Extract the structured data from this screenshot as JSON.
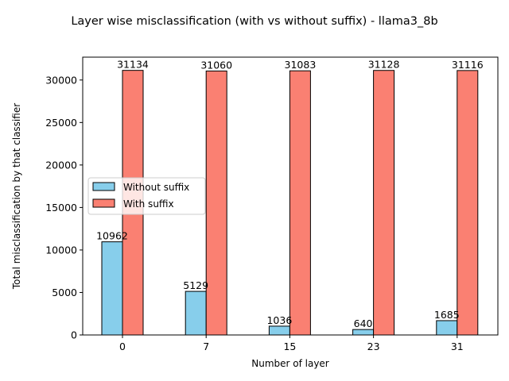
{
  "chart_data": {
    "type": "bar",
    "title": "Layer wise misclassification (with vs without suffix) - llama3_8b",
    "xlabel": "Number of layer",
    "ylabel": "Total misclassification by that classifier",
    "categories": [
      "0",
      "7",
      "15",
      "23",
      "31"
    ],
    "series": [
      {
        "name": "Without suffix",
        "color": "#87CEEB",
        "values": [
          10962,
          5129,
          1036,
          640,
          1685
        ]
      },
      {
        "name": "With suffix",
        "color": "#FA8072",
        "values": [
          31134,
          31060,
          31083,
          31128,
          31116
        ]
      }
    ],
    "ylim": [
      0,
      32690
    ],
    "yticks": [
      0,
      5000,
      10000,
      15000,
      20000,
      25000,
      30000
    ],
    "legend_position": "center-left",
    "grid": false
  }
}
